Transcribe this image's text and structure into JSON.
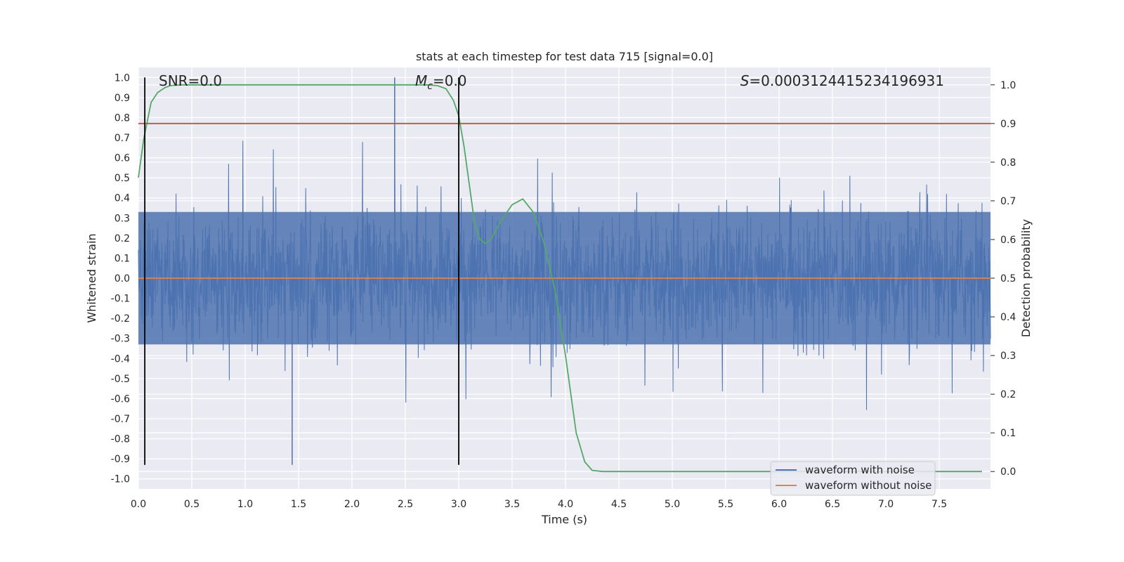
{
  "chart_data": {
    "type": "line",
    "title": "stats at each timestep for test data 715 [signal=0.0]",
    "xlabel": "Time (s)",
    "ylabel_left": "Whitened strain",
    "ylabel_right": "Detection probability",
    "xlim": [
      0.0,
      7.98
    ],
    "ylim_left": [
      -1.05,
      1.05
    ],
    "ylim_right": [
      -0.045,
      1.045
    ],
    "x_ticks": [
      "0.0",
      "0.5",
      "1.0",
      "1.5",
      "2.0",
      "2.5",
      "3.0",
      "3.5",
      "4.0",
      "4.5",
      "5.0",
      "5.5",
      "6.0",
      "6.5",
      "7.0",
      "7.5"
    ],
    "y_ticks_left": [
      "1.0",
      "0.9",
      "0.8",
      "0.7",
      "0.6",
      "0.5",
      "0.4",
      "0.3",
      "0.2",
      "0.1",
      "0.0",
      "-0.1",
      "-0.2",
      "-0.3",
      "-0.4",
      "-0.5",
      "-0.6",
      "-0.7",
      "-0.8",
      "-0.9",
      "-1.0"
    ],
    "y_ticks_right": [
      "1.0",
      "0.9",
      "0.8",
      "0.7",
      "0.6",
      "0.5",
      "0.4",
      "0.3",
      "0.2",
      "0.1",
      "0.0"
    ],
    "grid": true,
    "annotations": {
      "snr": "SNR=0.0",
      "mc_symbol": "M",
      "mc_sub": "c",
      "mc_value": "=0.0",
      "s_symbol": "S",
      "s_value": "=0.0003124415234196931"
    },
    "legend": {
      "position": "lower-right",
      "entries": [
        {
          "label": "waveform with noise",
          "color": "#4c72b0"
        },
        {
          "label": "waveform without noise",
          "color": "#dd8452"
        }
      ]
    },
    "series": [
      {
        "name": "waveform with noise",
        "axis": "left",
        "color": "#4c72b0",
        "kind": "noise",
        "x_range": [
          0.0,
          7.98
        ],
        "typical_amplitude": 0.3,
        "max_peak": 1.0,
        "max_peak_x": 2.4,
        "min_trough": -0.93,
        "min_trough_x": 1.44
      },
      {
        "name": "waveform without noise",
        "axis": "left",
        "color": "#dd8452",
        "x": [
          0.0,
          7.98
        ],
        "y": [
          0.0,
          0.0
        ]
      },
      {
        "name": "detection probability",
        "axis": "right",
        "color": "#55a868",
        "x": [
          0.0,
          0.05,
          0.12,
          0.18,
          0.25,
          0.3,
          0.4,
          0.5,
          1.0,
          2.0,
          2.5,
          2.7,
          2.8,
          2.88,
          2.95,
          3.0,
          3.05,
          3.1,
          3.15,
          3.2,
          3.25,
          3.3,
          3.4,
          3.5,
          3.6,
          3.7,
          3.8,
          3.9,
          4.0,
          4.1,
          4.18,
          4.25,
          4.35,
          5.0,
          6.0,
          7.0,
          7.9
        ],
        "y": [
          0.76,
          0.86,
          0.955,
          0.98,
          0.993,
          0.998,
          1.0,
          1.0,
          1.0,
          1.0,
          1.0,
          1.0,
          0.998,
          0.99,
          0.96,
          0.92,
          0.84,
          0.74,
          0.64,
          0.6,
          0.59,
          0.6,
          0.65,
          0.69,
          0.705,
          0.67,
          0.59,
          0.47,
          0.3,
          0.1,
          0.025,
          0.003,
          0.0,
          0.0,
          0.0,
          0.0,
          0.0
        ]
      },
      {
        "name": "threshold",
        "axis": "right",
        "color": "#c44e52",
        "x": [
          0.0,
          7.98
        ],
        "y": [
          0.9,
          0.9
        ]
      },
      {
        "name": "marker 1",
        "axis": "left",
        "color": "#000000",
        "kind": "vline",
        "x": 0.06,
        "y_range": [
          -0.93,
          1.0
        ]
      },
      {
        "name": "marker 2",
        "axis": "left",
        "color": "#000000",
        "kind": "vline",
        "x": 3.0,
        "y_range": [
          -0.93,
          1.0
        ]
      }
    ]
  }
}
